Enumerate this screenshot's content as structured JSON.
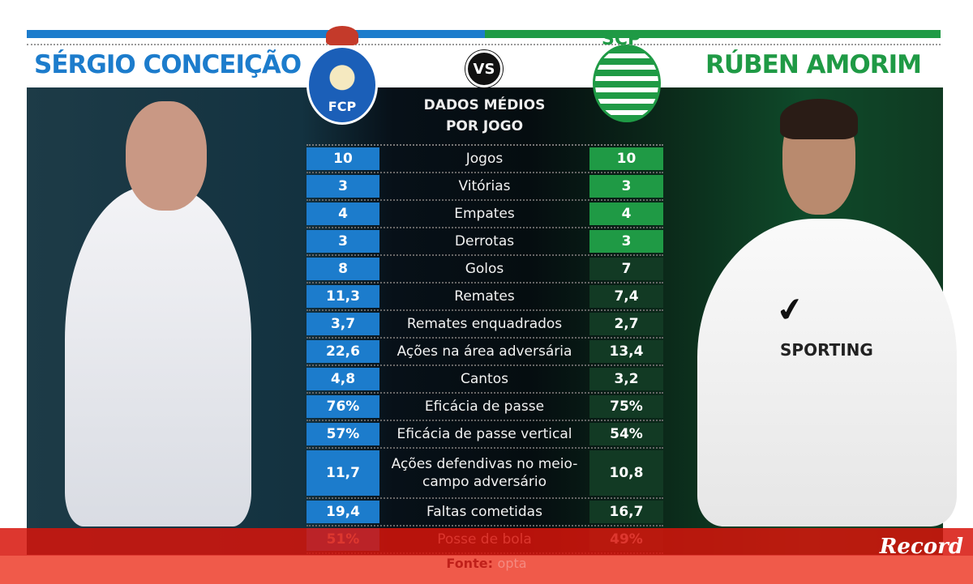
{
  "header": {
    "left_name": "SÉRGIO CONCEIÇÃO",
    "right_name": "RÚBEN AMORIM",
    "vs": "VS",
    "subtitle_line1": "DADOS MÉDIOS",
    "subtitle_line2": "POR JOGO",
    "left_crest": "FCP",
    "right_crest": "SCP",
    "shirt_text": "SPORTING"
  },
  "colors": {
    "porto_blue": "#1c7ccc",
    "sporting_green": "#1f9a45",
    "footer_red": "#f05a4a"
  },
  "rows": [
    {
      "left": "10",
      "label": "Jogos",
      "right": "10"
    },
    {
      "left": "3",
      "label": "Vitórias",
      "right": "3"
    },
    {
      "left": "4",
      "label": "Empates",
      "right": "4"
    },
    {
      "left": "3",
      "label": "Derrotas",
      "right": "3"
    },
    {
      "left": "8",
      "label": "Golos",
      "right": "7"
    },
    {
      "left": "11,3",
      "label": "Remates",
      "right": "7,4"
    },
    {
      "left": "3,7",
      "label": "Remates enquadrados",
      "right": "2,7"
    },
    {
      "left": "22,6",
      "label": "Ações na área adversária",
      "right": "13,4"
    },
    {
      "left": "4,8",
      "label": "Cantos",
      "right": "3,2"
    },
    {
      "left": "76%",
      "label": "Eficácia de passe",
      "right": "75%"
    },
    {
      "left": "57%",
      "label": "Eficácia de passe vertical",
      "right": "54%"
    },
    {
      "left": "11,7",
      "label": "Ações defendivas no meio-campo adversário",
      "right": "10,8"
    },
    {
      "left": "19,4",
      "label": "Faltas cometidas",
      "right": "16,7"
    },
    {
      "left": "51%",
      "label": "Posse de bola",
      "right": "49%"
    }
  ],
  "footer": {
    "source_label": "Fonte:",
    "source_value": "opta",
    "logo": "Record"
  }
}
